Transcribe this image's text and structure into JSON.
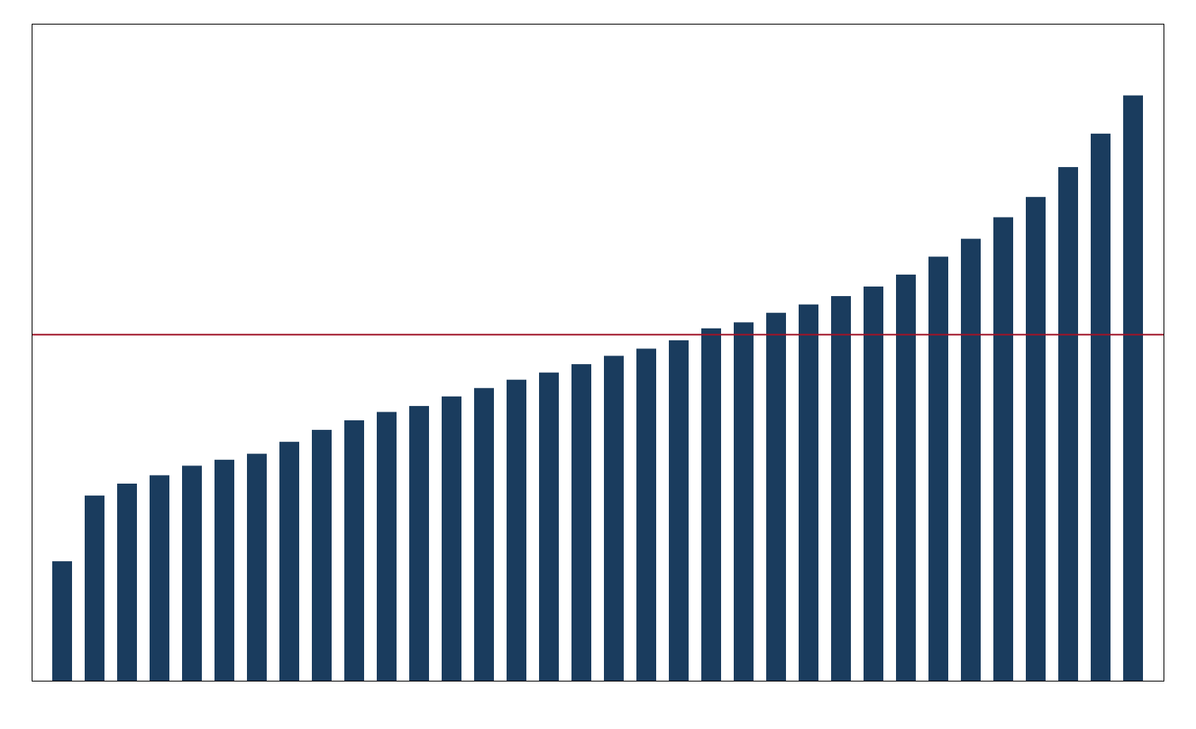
{
  "chart_data": {
    "type": "bar",
    "categories": [
      null,
      null,
      null,
      null,
      null,
      null,
      null,
      null,
      null,
      null,
      null,
      null,
      null,
      null,
      null,
      null,
      null,
      null,
      null,
      null,
      null,
      null,
      null,
      null,
      null,
      null,
      null,
      null,
      null,
      null,
      null,
      null,
      null,
      null
    ],
    "values": [
      1.0,
      1.55,
      1.65,
      1.72,
      1.8,
      1.85,
      1.9,
      2.0,
      2.1,
      2.18,
      2.25,
      2.3,
      2.38,
      2.45,
      2.52,
      2.58,
      2.65,
      2.72,
      2.78,
      2.85,
      2.95,
      3.0,
      3.08,
      3.15,
      3.22,
      3.3,
      3.4,
      3.55,
      3.7,
      3.88,
      4.05,
      4.3,
      4.58,
      4.9
    ],
    "color": "#1a3c5e",
    "ylim": [
      0,
      5.5
    ],
    "tick_labels": false,
    "reference_line": {
      "value": 2.9,
      "color": "#a01428"
    }
  }
}
